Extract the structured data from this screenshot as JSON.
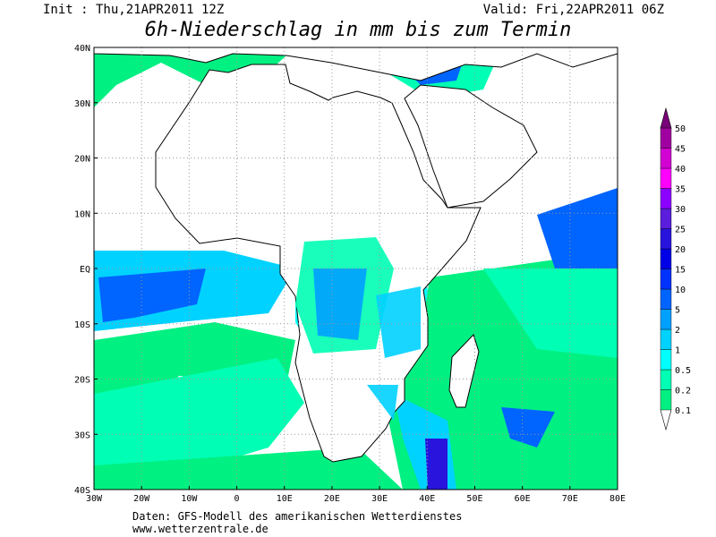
{
  "header": {
    "init": "Init : Thu,21APR2011 12Z",
    "valid": "Valid: Fri,22APR2011 06Z",
    "title": "6h-Niederschlag in mm bis zum Termin"
  },
  "map": {
    "lon_labels": [
      "30W",
      "20W",
      "10W",
      "0",
      "10E",
      "20E",
      "30E",
      "40E",
      "50E",
      "60E",
      "70E",
      "80E"
    ],
    "lat_labels": [
      "40N",
      "30N",
      "20N",
      "10N",
      "EQ",
      "10S",
      "20S",
      "30S",
      "40S"
    ]
  },
  "legend": {
    "levels": [
      0.1,
      0.2,
      0.5,
      1,
      2,
      5,
      10,
      15,
      20,
      25,
      30,
      35,
      40,
      45,
      50
    ],
    "colors": [
      "#00f082",
      "#00ffb4",
      "#00ffff",
      "#00d2ff",
      "#00a0ff",
      "#0064ff",
      "#0032ff",
      "#0000e6",
      "#2814dc",
      "#5a1edc",
      "#8c00ff",
      "#ff00ff",
      "#d200d2",
      "#a000a0",
      "#780078"
    ]
  },
  "footer": {
    "line1": "Daten: GFS-Modell des amerikanischen Wetterdienstes",
    "line2": "www.wetterzentrale.de"
  }
}
